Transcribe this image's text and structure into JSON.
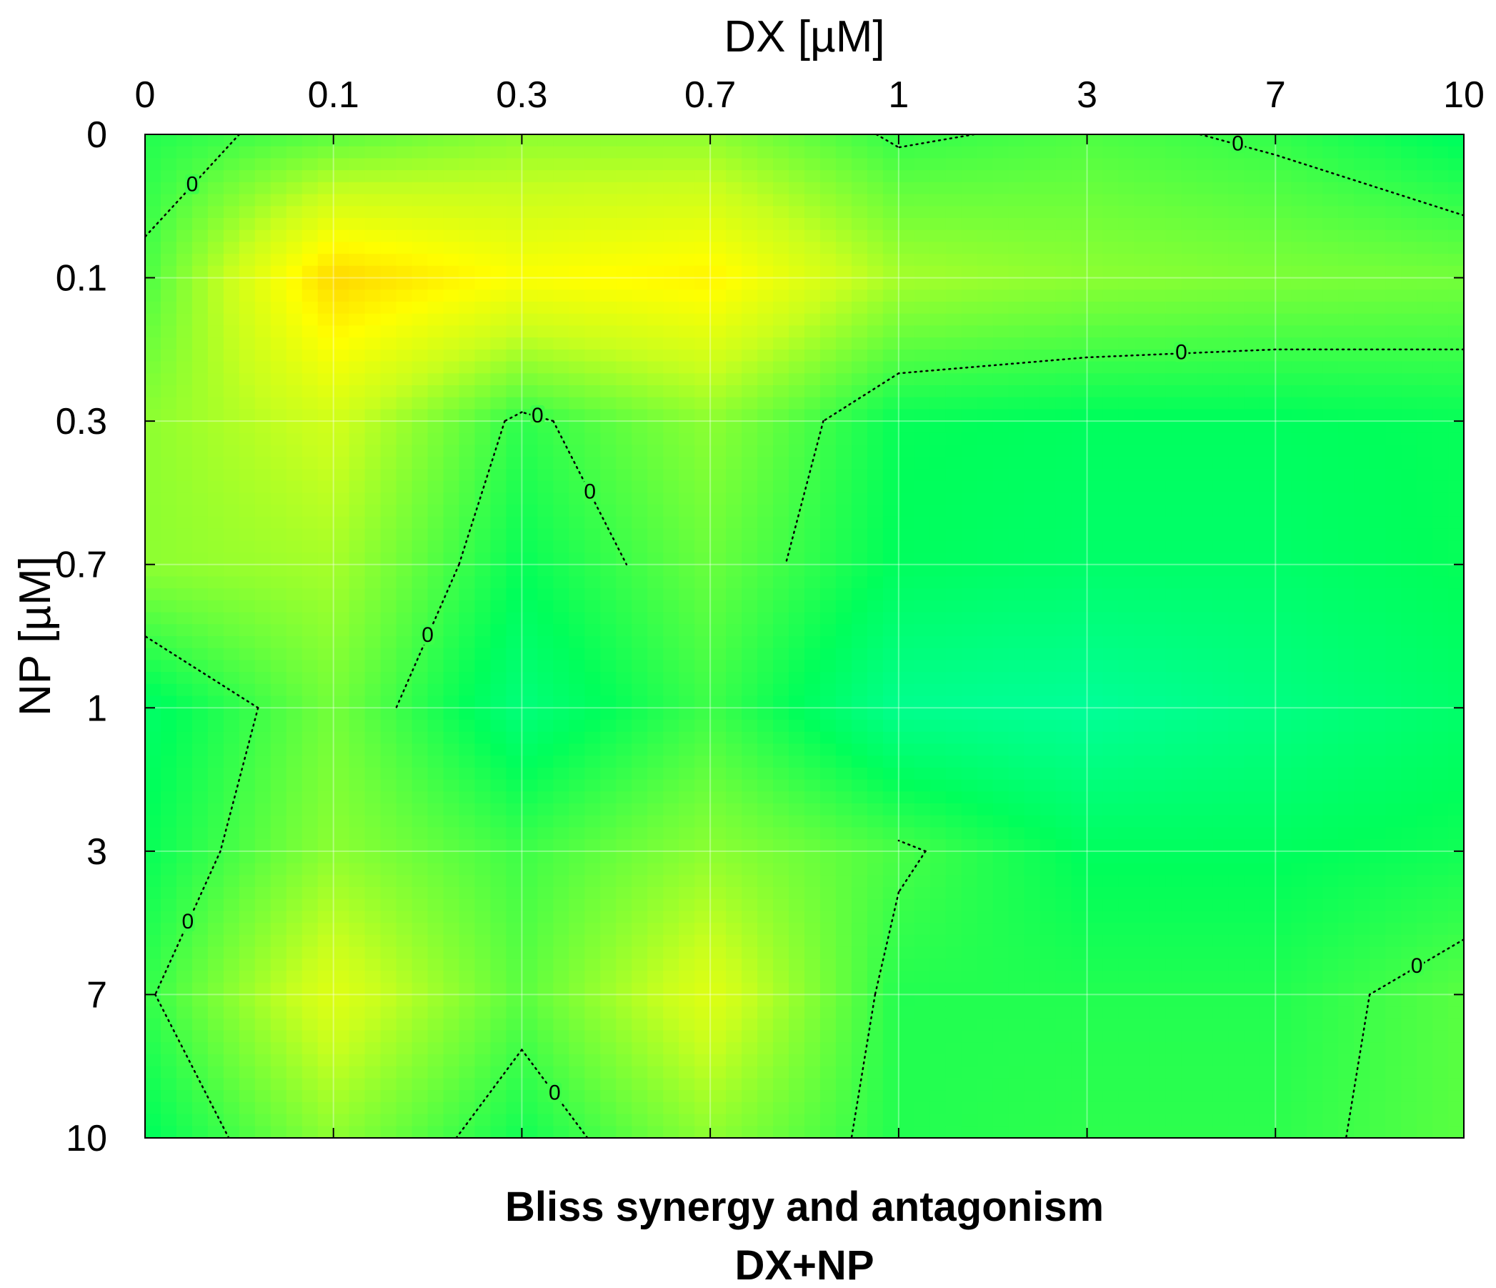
{
  "chart_data": {
    "type": "heatmap",
    "subtype": "filled-contour",
    "title": "Bliss synergy and antagonism",
    "subtitle": "DX+NP",
    "xlabel": "DX [µM]",
    "ylabel": "NP [µM]",
    "x_axis_position": "top",
    "x": [
      "0",
      "0.1",
      "0.3",
      "0.7",
      "1",
      "3",
      "7",
      "10"
    ],
    "y": [
      "0",
      "0.1",
      "0.3",
      "0.7",
      "1",
      "3",
      "7",
      "10"
    ],
    "values": [
      [
        -0.5,
        0.5,
        1.5,
        1.5,
        -0.2,
        0.3,
        -0.2,
        -1.3
      ],
      [
        0.2,
        6.0,
        4.5,
        5.0,
        2.0,
        1.5,
        1.2,
        1.0
      ],
      [
        1.5,
        3.0,
        -0.3,
        1.5,
        -1.0,
        -1.2,
        -1.2,
        -1.0
      ],
      [
        1.5,
        2.0,
        -1.0,
        0.8,
        -1.2,
        -1.5,
        -1.5,
        -1.0
      ],
      [
        -1.5,
        1.0,
        -2.0,
        0.0,
        -2.5,
        -2.8,
        -2.2,
        -1.5
      ],
      [
        -1.0,
        1.5,
        0.0,
        1.5,
        0.2,
        -1.2,
        -1.2,
        -0.8
      ],
      [
        -0.2,
        3.5,
        0.5,
        3.5,
        -0.5,
        -0.5,
        -0.5,
        0.5
      ],
      [
        -1.2,
        1.5,
        -0.8,
        1.5,
        -0.5,
        -0.3,
        -0.3,
        0.5
      ]
    ],
    "contour_levels_labeled": [
      0
    ],
    "contour_label_text": "0",
    "colormap": [
      "#00ffa0",
      "#00ff5a",
      "#6aff3c",
      "#c8ff1e",
      "#ffff00",
      "#ffc800"
    ],
    "grid": true
  }
}
